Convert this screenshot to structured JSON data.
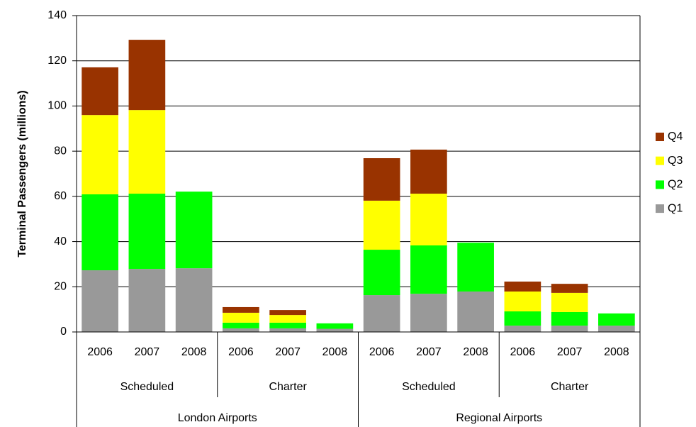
{
  "chart_data": {
    "type": "bar",
    "stacked": true,
    "y_label": "Terminal Passengers (millions)",
    "groups": [
      {
        "name": "London Airports",
        "subgroups": [
          {
            "name": "Scheduled",
            "categories": [
              "2006",
              "2007",
              "2008"
            ]
          },
          {
            "name": "Charter",
            "categories": [
              "2006",
              "2007",
              "2008"
            ]
          }
        ]
      },
      {
        "name": "Regional Airports",
        "subgroups": [
          {
            "name": "Scheduled",
            "categories": [
              "2006",
              "2007",
              "2008"
            ]
          },
          {
            "name": "Charter",
            "categories": [
              "2006",
              "2007",
              "2008"
            ]
          }
        ]
      }
    ],
    "series": [
      {
        "name": "Q1",
        "color": "#999999",
        "values": [
          27.3,
          27.9,
          28.2,
          1.6,
          1.6,
          1.4,
          16.3,
          16.9,
          17.9,
          2.8,
          2.8,
          2.8
        ]
      },
      {
        "name": "Q2",
        "color": "#00ff00",
        "values": [
          33.6,
          33.3,
          33.9,
          2.5,
          2.5,
          2.4,
          20.1,
          21.4,
          21.6,
          6.3,
          6.0,
          5.4
        ]
      },
      {
        "name": "Q3",
        "color": "#ffff00",
        "values": [
          35.1,
          37.0,
          null,
          4.4,
          3.4,
          null,
          21.7,
          22.9,
          null,
          8.8,
          8.5,
          null
        ]
      },
      {
        "name": "Q4",
        "color": "#993300",
        "values": [
          21.1,
          31.1,
          null,
          2.5,
          2.2,
          null,
          18.8,
          19.5,
          null,
          4.4,
          4.0,
          null
        ]
      }
    ],
    "ylim": [
      0,
      140
    ],
    "yticks": [
      0,
      20,
      40,
      60,
      80,
      100,
      120,
      140
    ],
    "grid": true,
    "legend": "right"
  }
}
